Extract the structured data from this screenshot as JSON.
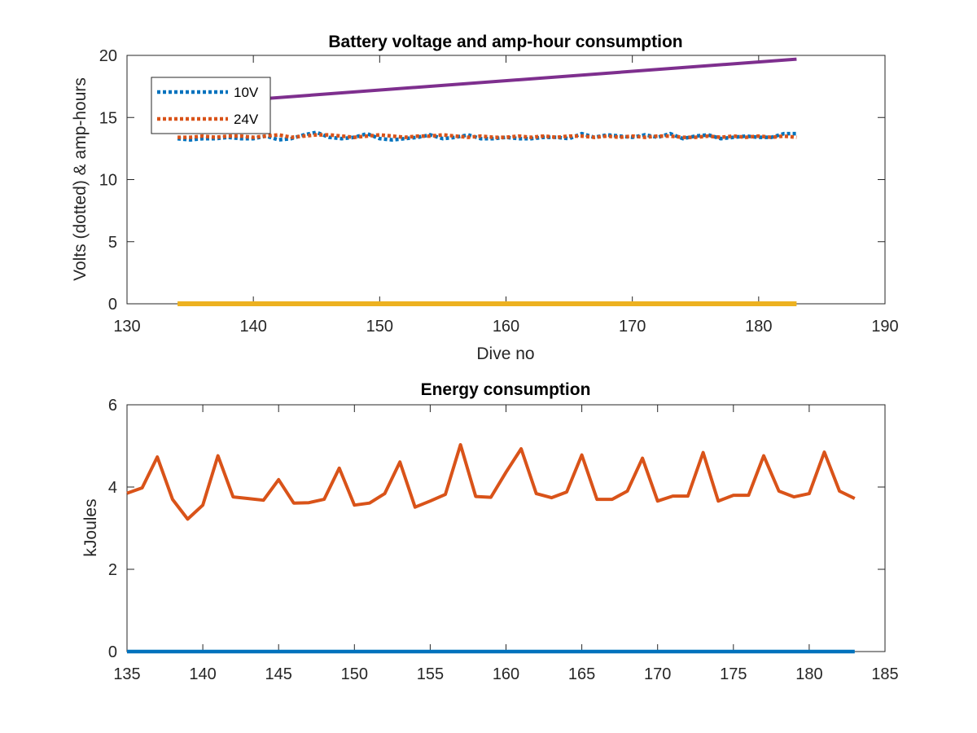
{
  "chart_data": [
    {
      "type": "line",
      "title": "Battery voltage and amp-hour consumption",
      "xlabel": "Dive no",
      "ylabel": "Volts (dotted) & amp-hours",
      "xlim": [
        130,
        190
      ],
      "ylim": [
        0,
        20
      ],
      "xticks": [
        130,
        140,
        150,
        160,
        170,
        180,
        190
      ],
      "yticks": [
        0,
        5,
        10,
        15,
        20
      ],
      "legend_position": "top-left",
      "series": [
        {
          "name": "10V",
          "style": "dotted",
          "color": "#0072BD",
          "x": [
            134,
            135,
            136,
            137,
            138,
            139,
            140,
            141,
            142,
            143,
            144,
            145,
            146,
            147,
            148,
            149,
            150,
            151,
            152,
            153,
            154,
            155,
            156,
            157,
            158,
            159,
            160,
            161,
            162,
            163,
            164,
            165,
            166,
            167,
            168,
            169,
            170,
            171,
            172,
            173,
            174,
            175,
            176,
            177,
            178,
            179,
            180,
            181,
            182,
            183
          ],
          "values": [
            13.3,
            13.2,
            13.3,
            13.3,
            13.4,
            13.3,
            13.3,
            13.5,
            13.2,
            13.3,
            13.6,
            13.8,
            13.4,
            13.3,
            13.4,
            13.7,
            13.3,
            13.2,
            13.3,
            13.4,
            13.6,
            13.3,
            13.4,
            13.6,
            13.3,
            13.3,
            13.4,
            13.3,
            13.3,
            13.4,
            13.4,
            13.3,
            13.7,
            13.4,
            13.6,
            13.5,
            13.4,
            13.6,
            13.4,
            13.7,
            13.3,
            13.5,
            13.6,
            13.3,
            13.4,
            13.5,
            13.4,
            13.4,
            13.7,
            13.7
          ]
        },
        {
          "name": "24V",
          "style": "dotted",
          "color": "#D95319",
          "x": [
            134,
            135,
            136,
            137,
            138,
            139,
            140,
            141,
            142,
            143,
            144,
            145,
            146,
            147,
            148,
            149,
            150,
            151,
            152,
            153,
            154,
            155,
            156,
            157,
            158,
            159,
            160,
            161,
            162,
            163,
            164,
            165,
            166,
            167,
            168,
            169,
            170,
            171,
            172,
            173,
            174,
            175,
            176,
            177,
            178,
            179,
            180,
            181,
            182,
            183
          ],
          "values": [
            13.4,
            13.4,
            13.5,
            13.4,
            13.5,
            13.5,
            13.4,
            13.5,
            13.6,
            13.4,
            13.5,
            13.6,
            13.6,
            13.5,
            13.4,
            13.5,
            13.6,
            13.5,
            13.4,
            13.5,
            13.5,
            13.6,
            13.5,
            13.4,
            13.5,
            13.4,
            13.4,
            13.5,
            13.4,
            13.5,
            13.4,
            13.5,
            13.5,
            13.4,
            13.5,
            13.4,
            13.5,
            13.4,
            13.5,
            13.5,
            13.4,
            13.4,
            13.5,
            13.4,
            13.5,
            13.4,
            13.5,
            13.4,
            13.5,
            13.4
          ]
        },
        {
          "style": "solid",
          "color": "#EDB120",
          "x": [
            134,
            183
          ],
          "values": [
            0,
            0
          ]
        },
        {
          "style": "solid",
          "color": "#7E2F8E",
          "x": [
            134,
            183
          ],
          "values": [
            16.0,
            19.7
          ]
        }
      ]
    },
    {
      "type": "line",
      "title": "Energy consumption",
      "xlabel": "",
      "ylabel": "kJoules",
      "xlim": [
        135,
        185
      ],
      "ylim": [
        0,
        6
      ],
      "xticks": [
        135,
        140,
        145,
        150,
        155,
        160,
        165,
        170,
        175,
        180,
        185
      ],
      "yticks": [
        0,
        2,
        4,
        6
      ],
      "series": [
        {
          "style": "solid",
          "color": "#D95319",
          "x": [
            135,
            136,
            137,
            138,
            139,
            140,
            141,
            142,
            143,
            144,
            145,
            146,
            147,
            148,
            149,
            150,
            151,
            152,
            153,
            154,
            155,
            156,
            157,
            158,
            159,
            160,
            161,
            162,
            163,
            164,
            165,
            166,
            167,
            168,
            169,
            170,
            171,
            172,
            173,
            174,
            175,
            176,
            177,
            178,
            179,
            180,
            181,
            182,
            183
          ],
          "values": [
            3.85,
            3.98,
            4.73,
            3.7,
            3.22,
            3.56,
            4.76,
            3.76,
            3.72,
            3.68,
            4.18,
            3.61,
            3.62,
            3.7,
            4.46,
            3.56,
            3.61,
            3.84,
            4.61,
            3.51,
            3.66,
            3.82,
            5.03,
            3.77,
            3.75,
            4.36,
            4.93,
            3.84,
            3.74,
            3.88,
            4.78,
            3.7,
            3.7,
            3.9,
            4.7,
            3.66,
            3.78,
            3.78,
            4.84,
            3.66,
            3.8,
            3.8,
            4.76,
            3.9,
            3.76,
            3.84,
            4.85,
            3.9,
            3.72
          ]
        },
        {
          "style": "solid",
          "color": "#0072BD",
          "x": [
            135,
            183
          ],
          "values": [
            0,
            0
          ]
        }
      ]
    }
  ]
}
